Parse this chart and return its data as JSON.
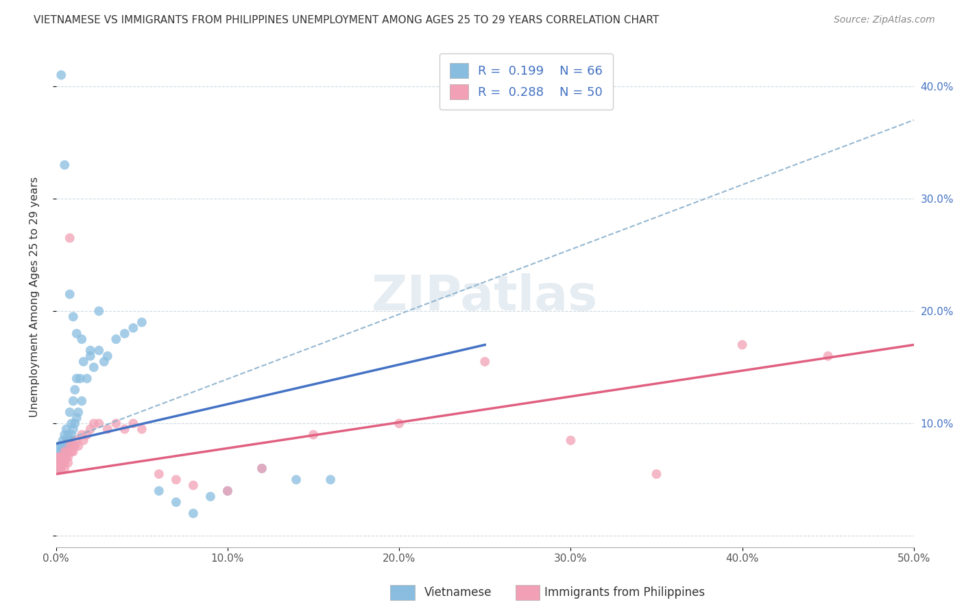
{
  "title": "VIETNAMESE VS IMMIGRANTS FROM PHILIPPINES UNEMPLOYMENT AMONG AGES 25 TO 29 YEARS CORRELATION CHART",
  "source": "Source: ZipAtlas.com",
  "ylabel": "Unemployment Among Ages 25 to 29 years",
  "xlim": [
    0.0,
    0.5
  ],
  "ylim": [
    -0.01,
    0.435
  ],
  "legend_R1": "0.199",
  "legend_N1": "66",
  "legend_R2": "0.288",
  "legend_N2": "50",
  "color_vietnamese": "#89bde0",
  "color_philippines": "#f2a0b5",
  "color_line_vietnamese": "#4472c4",
  "color_line_philippines": "#e06080",
  "color_dashed": "#8ab0cc",
  "watermark_text": "ZIPatlas",
  "viet_x": [
    0.001,
    0.001,
    0.001,
    0.002,
    0.002,
    0.002,
    0.002,
    0.003,
    0.003,
    0.003,
    0.003,
    0.004,
    0.004,
    0.004,
    0.004,
    0.005,
    0.005,
    0.005,
    0.005,
    0.006,
    0.006,
    0.006,
    0.006,
    0.007,
    0.007,
    0.007,
    0.008,
    0.008,
    0.009,
    0.009,
    0.01,
    0.01,
    0.011,
    0.011,
    0.012,
    0.012,
    0.013,
    0.014,
    0.015,
    0.016,
    0.018,
    0.02,
    0.022,
    0.025,
    0.028,
    0.03,
    0.035,
    0.04,
    0.045,
    0.05,
    0.06,
    0.07,
    0.08,
    0.09,
    0.1,
    0.12,
    0.14,
    0.16,
    0.003,
    0.005,
    0.008,
    0.01,
    0.012,
    0.015,
    0.02,
    0.025
  ],
  "viet_y": [
    0.06,
    0.065,
    0.07,
    0.06,
    0.07,
    0.075,
    0.08,
    0.065,
    0.07,
    0.075,
    0.08,
    0.07,
    0.075,
    0.08,
    0.085,
    0.07,
    0.075,
    0.08,
    0.09,
    0.075,
    0.08,
    0.085,
    0.095,
    0.08,
    0.085,
    0.09,
    0.085,
    0.11,
    0.09,
    0.1,
    0.095,
    0.12,
    0.1,
    0.13,
    0.105,
    0.14,
    0.11,
    0.14,
    0.12,
    0.155,
    0.14,
    0.16,
    0.15,
    0.165,
    0.155,
    0.16,
    0.175,
    0.18,
    0.185,
    0.19,
    0.04,
    0.03,
    0.02,
    0.035,
    0.04,
    0.06,
    0.05,
    0.05,
    0.41,
    0.33,
    0.215,
    0.195,
    0.18,
    0.175,
    0.165,
    0.2
  ],
  "phil_x": [
    0.001,
    0.001,
    0.001,
    0.002,
    0.002,
    0.002,
    0.003,
    0.003,
    0.003,
    0.004,
    0.004,
    0.005,
    0.005,
    0.005,
    0.006,
    0.006,
    0.007,
    0.007,
    0.008,
    0.008,
    0.009,
    0.01,
    0.01,
    0.011,
    0.012,
    0.013,
    0.015,
    0.016,
    0.018,
    0.02,
    0.022,
    0.025,
    0.03,
    0.035,
    0.04,
    0.045,
    0.05,
    0.06,
    0.07,
    0.08,
    0.1,
    0.12,
    0.15,
    0.2,
    0.25,
    0.3,
    0.35,
    0.4,
    0.45,
    0.008
  ],
  "phil_y": [
    0.06,
    0.065,
    0.07,
    0.06,
    0.065,
    0.07,
    0.06,
    0.065,
    0.07,
    0.065,
    0.07,
    0.06,
    0.065,
    0.075,
    0.07,
    0.075,
    0.065,
    0.07,
    0.075,
    0.08,
    0.075,
    0.08,
    0.075,
    0.08,
    0.085,
    0.08,
    0.09,
    0.085,
    0.09,
    0.095,
    0.1,
    0.1,
    0.095,
    0.1,
    0.095,
    0.1,
    0.095,
    0.055,
    0.05,
    0.045,
    0.04,
    0.06,
    0.09,
    0.1,
    0.155,
    0.085,
    0.055,
    0.17,
    0.16,
    0.265
  ],
  "viet_line_x": [
    0.0,
    0.25
  ],
  "viet_line_y": [
    0.082,
    0.17
  ],
  "phil_line_x": [
    0.0,
    0.5
  ],
  "phil_line_y": [
    0.055,
    0.17
  ],
  "dash_line_x": [
    0.0,
    0.5
  ],
  "dash_line_y": [
    0.082,
    0.37
  ]
}
